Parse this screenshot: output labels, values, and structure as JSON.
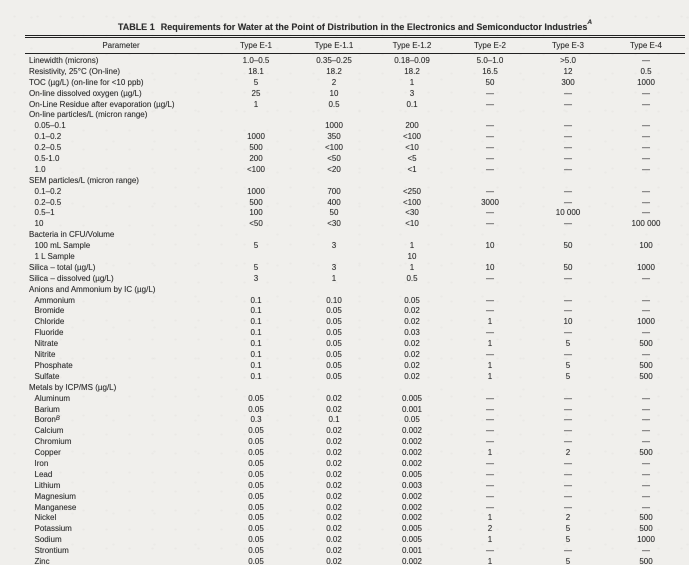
{
  "document": {
    "title": {
      "label": "TABLE 1",
      "text": "Requirements for Water at the Point of Distribution in the Electronics and Semiconductor Industries",
      "superscript": "A"
    },
    "columns": [
      "Parameter",
      "Type E-1",
      "Type E-1.1",
      "Type E-1.2",
      "Type E-2",
      "Type E-3",
      "Type E-4"
    ],
    "rows": [
      {
        "label": "Linewidth (microns)",
        "indent": 0,
        "sup": "",
        "values": [
          "1.0–0.5",
          "0.35–0.25",
          "0.18–0.09",
          "5.0–1.0",
          ">5.0",
          "—"
        ]
      },
      {
        "label": "Resistivity, 25°C (On-line)",
        "indent": 0,
        "sup": "",
        "values": [
          "18.1",
          "18.2",
          "18.2",
          "16.5",
          "12",
          "0.5"
        ]
      },
      {
        "label": "TOC (µg/L) (on-line for <10 ppb)",
        "indent": 0,
        "sup": "",
        "values": [
          "5",
          "2",
          "1",
          "50",
          "300",
          "1000"
        ]
      },
      {
        "label": "On-line dissolved oxygen (µg/L)",
        "indent": 0,
        "sup": "",
        "values": [
          "25",
          "10",
          "3",
          "—",
          "—",
          "—"
        ]
      },
      {
        "label": "On-Line Residue after evaporation (µg/L)",
        "indent": 0,
        "sup": "",
        "values": [
          "1",
          "0.5",
          "0.1",
          "—",
          "—",
          "—"
        ]
      },
      {
        "label": "On-line particles/L (micron range)",
        "indent": 0,
        "sup": "",
        "values": [
          "",
          "",
          "",
          "",
          "",
          ""
        ]
      },
      {
        "label": "0.05–0.1",
        "indent": 1,
        "sup": "",
        "values": [
          "",
          "1000",
          "200",
          "—",
          "—",
          "—"
        ]
      },
      {
        "label": "0.1–0.2",
        "indent": 1,
        "sup": "",
        "values": [
          "1000",
          "350",
          "<100",
          "—",
          "—",
          "—"
        ]
      },
      {
        "label": "0.2–0.5",
        "indent": 1,
        "sup": "",
        "values": [
          "500",
          "<100",
          "<10",
          "—",
          "—",
          "—"
        ]
      },
      {
        "label": "0.5-1.0",
        "indent": 1,
        "sup": "",
        "values": [
          "200",
          "<50",
          "<5",
          "—",
          "—",
          "—"
        ]
      },
      {
        "label": "1.0",
        "indent": 1,
        "sup": "",
        "values": [
          "<100",
          "<20",
          "<1",
          "—",
          "—",
          "—"
        ]
      },
      {
        "label": "SEM particles/L (micron range)",
        "indent": 0,
        "sup": "",
        "values": [
          "",
          "",
          "",
          "",
          "",
          ""
        ]
      },
      {
        "label": "0.1–0.2",
        "indent": 1,
        "sup": "",
        "values": [
          "1000",
          "700",
          "<250",
          "—",
          "—",
          "—"
        ]
      },
      {
        "label": "0.2–0.5",
        "indent": 1,
        "sup": "",
        "values": [
          "500",
          "400",
          "<100",
          "3000",
          "—",
          "—"
        ]
      },
      {
        "label": "0.5–1",
        "indent": 1,
        "sup": "",
        "values": [
          "100",
          "50",
          "<30",
          "—",
          "10 000",
          "—"
        ]
      },
      {
        "label": "10",
        "indent": 1,
        "sup": "",
        "values": [
          "<50",
          "<30",
          "<10",
          "—",
          "—",
          "100 000"
        ]
      },
      {
        "label": "Bacteria in CFU/Volume",
        "indent": 0,
        "sup": "",
        "values": [
          "",
          "",
          "",
          "",
          "",
          ""
        ]
      },
      {
        "label": "100 mL Sample",
        "indent": 1,
        "sup": "",
        "values": [
          "5",
          "3",
          "1",
          "10",
          "50",
          "100"
        ]
      },
      {
        "label": "1 L Sample",
        "indent": 1,
        "sup": "",
        "values": [
          "",
          "",
          "10",
          "",
          "",
          ""
        ]
      },
      {
        "label": "Silica – total (µg/L)",
        "indent": 0,
        "sup": "",
        "values": [
          "5",
          "3",
          "1",
          "10",
          "50",
          "1000"
        ]
      },
      {
        "label": "Silica – dissolved (µg/L)",
        "indent": 0,
        "sup": "",
        "values": [
          "3",
          "1",
          "0.5",
          "—",
          "—",
          "—"
        ]
      },
      {
        "label": "Anions and Ammonium by IC (µg/L)",
        "indent": 0,
        "sup": "",
        "values": [
          "",
          "",
          "",
          "",
          "",
          ""
        ]
      },
      {
        "label": "Ammonium",
        "indent": 1,
        "sup": "",
        "values": [
          "0.1",
          "0.10",
          "0.05",
          "—",
          "—",
          "—"
        ]
      },
      {
        "label": "Bromide",
        "indent": 1,
        "sup": "",
        "values": [
          "0.1",
          "0.05",
          "0.02",
          "—",
          "—",
          "—"
        ]
      },
      {
        "label": "Chloride",
        "indent": 1,
        "sup": "",
        "values": [
          "0.1",
          "0.05",
          "0.02",
          "1",
          "10",
          "1000"
        ]
      },
      {
        "label": "Fluoride",
        "indent": 1,
        "sup": "",
        "values": [
          "0.1",
          "0.05",
          "0.03",
          "—",
          "—",
          "—"
        ]
      },
      {
        "label": "Nitrate",
        "indent": 1,
        "sup": "",
        "values": [
          "0.1",
          "0.05",
          "0.02",
          "1",
          "5",
          "500"
        ]
      },
      {
        "label": "Nitrite",
        "indent": 1,
        "sup": "",
        "values": [
          "0.1",
          "0.05",
          "0.02",
          "—",
          "—",
          "—"
        ]
      },
      {
        "label": "Phosphate",
        "indent": 1,
        "sup": "",
        "values": [
          "0.1",
          "0.05",
          "0.02",
          "1",
          "5",
          "500"
        ]
      },
      {
        "label": "Sulfate",
        "indent": 1,
        "sup": "",
        "values": [
          "0.1",
          "0.05",
          "0.02",
          "1",
          "5",
          "500"
        ]
      },
      {
        "label": "Metals by ICP/MS (µg/L)",
        "indent": 0,
        "sup": "",
        "values": [
          "",
          "",
          "",
          "",
          "",
          ""
        ]
      },
      {
        "label": "Aluminum",
        "indent": 1,
        "sup": "",
        "values": [
          "0.05",
          "0.02",
          "0.005",
          "—",
          "—",
          "—"
        ]
      },
      {
        "label": "Barium",
        "indent": 1,
        "sup": "",
        "values": [
          "0.05",
          "0.02",
          "0.001",
          "—",
          "—",
          "—"
        ]
      },
      {
        "label": "Boron",
        "indent": 1,
        "sup": "B",
        "values": [
          "0.3",
          "0.1",
          "0.05",
          "—",
          "—",
          "—"
        ]
      },
      {
        "label": "Calcium",
        "indent": 1,
        "sup": "",
        "values": [
          "0.05",
          "0.02",
          "0.002",
          "—",
          "—",
          "—"
        ]
      },
      {
        "label": "Chromium",
        "indent": 1,
        "sup": "",
        "values": [
          "0.05",
          "0.02",
          "0.002",
          "—",
          "—",
          "—"
        ]
      },
      {
        "label": "Copper",
        "indent": 1,
        "sup": "",
        "values": [
          "0.05",
          "0.02",
          "0.002",
          "1",
          "2",
          "500"
        ]
      },
      {
        "label": "Iron",
        "indent": 1,
        "sup": "",
        "values": [
          "0.05",
          "0.02",
          "0.002",
          "—",
          "—",
          "—"
        ]
      },
      {
        "label": "Lead",
        "indent": 1,
        "sup": "",
        "values": [
          "0.05",
          "0.02",
          "0.005",
          "—",
          "—",
          "—"
        ]
      },
      {
        "label": "Lithium",
        "indent": 1,
        "sup": "",
        "values": [
          "0.05",
          "0.02",
          "0.003",
          "—",
          "—",
          "—"
        ]
      },
      {
        "label": "Magnesium",
        "indent": 1,
        "sup": "",
        "values": [
          "0.05",
          "0.02",
          "0.002",
          "—",
          "—",
          "—"
        ]
      },
      {
        "label": "Manganese",
        "indent": 1,
        "sup": "",
        "values": [
          "0.05",
          "0.02",
          "0.002",
          "—",
          "—",
          "—"
        ]
      },
      {
        "label": "Nickel",
        "indent": 1,
        "sup": "",
        "values": [
          "0.05",
          "0.02",
          "0.002",
          "1",
          "2",
          "500"
        ]
      },
      {
        "label": "Potassium",
        "indent": 1,
        "sup": "",
        "values": [
          "0.05",
          "0.02",
          "0.005",
          "2",
          "5",
          "500"
        ]
      },
      {
        "label": "Sodium",
        "indent": 1,
        "sup": "",
        "values": [
          "0.05",
          "0.02",
          "0.005",
          "1",
          "5",
          "1000"
        ]
      },
      {
        "label": "Strontium",
        "indent": 1,
        "sup": "",
        "values": [
          "0.05",
          "0.02",
          "0.001",
          "—",
          "—",
          "—"
        ]
      },
      {
        "label": "Zinc",
        "indent": 1,
        "sup": "",
        "values": [
          "0.05",
          "0.02",
          "0.002",
          "1",
          "5",
          "500"
        ]
      }
    ]
  }
}
